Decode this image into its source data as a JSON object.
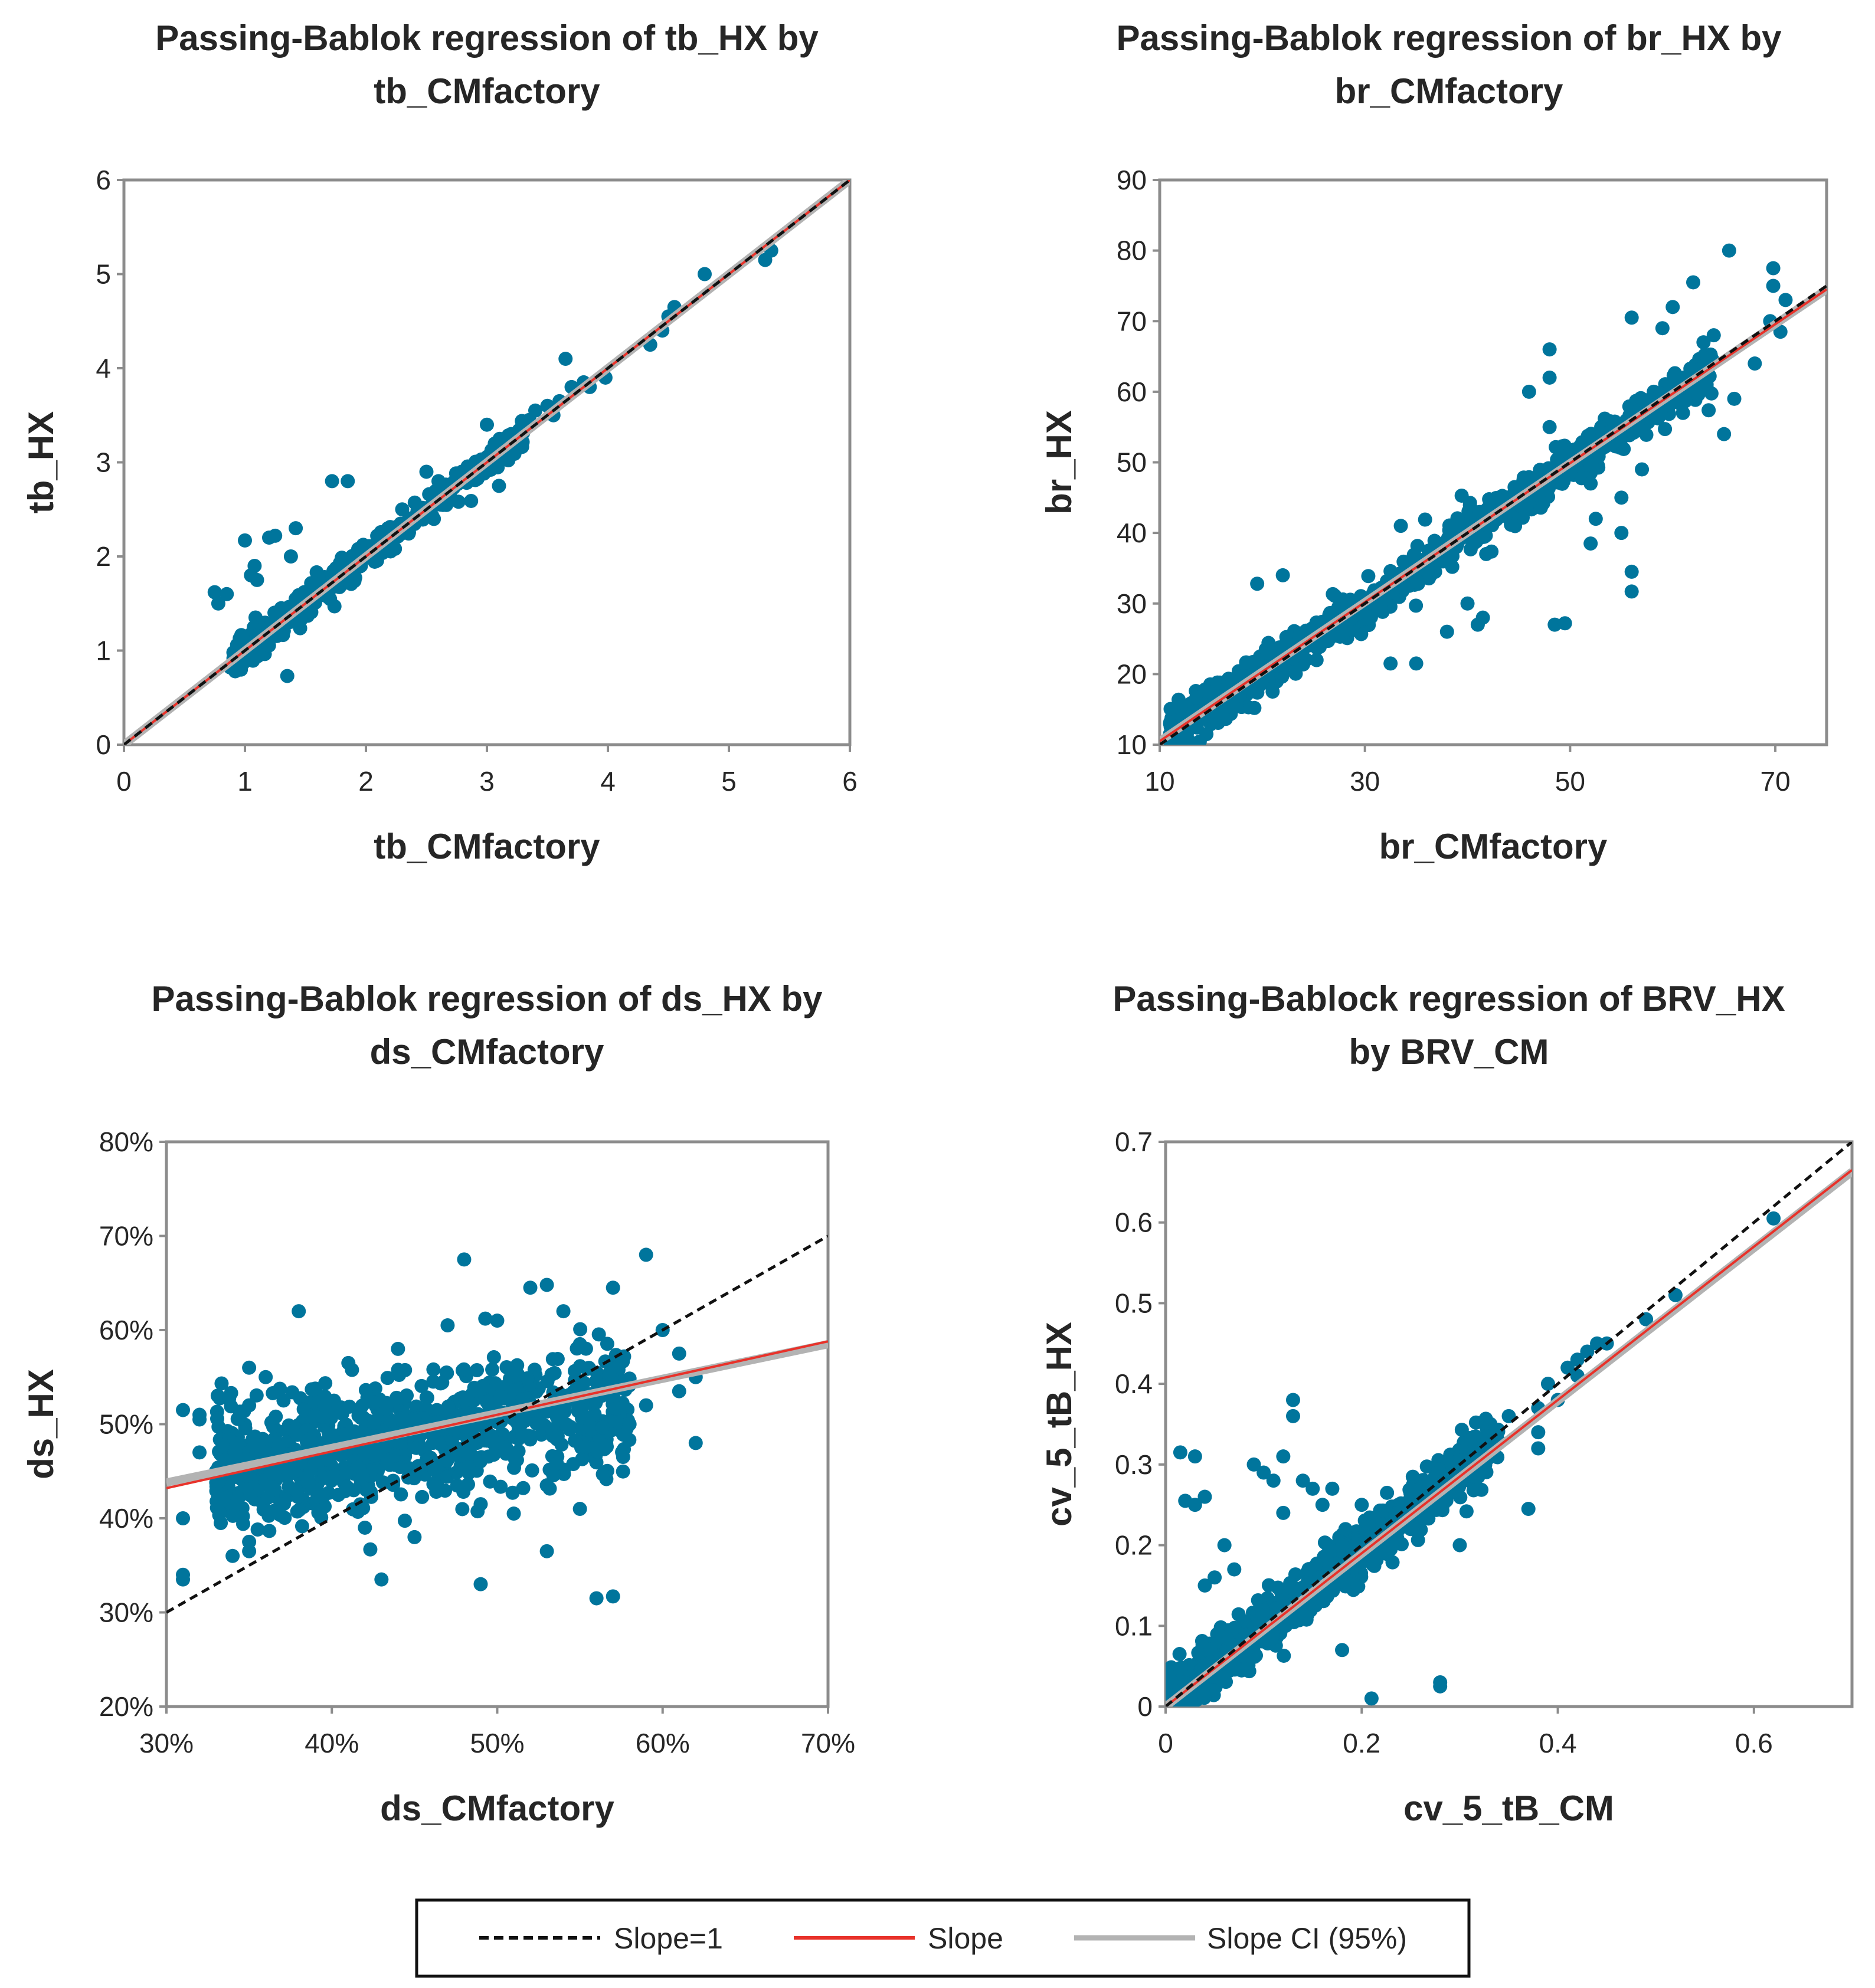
{
  "colors": {
    "points": "#00759c",
    "slope": "#e8322a",
    "slope_ci": "#b3b3b3",
    "identity": "#111111",
    "frame": "#8c8c8c"
  },
  "legend": {
    "identity_label": "Slope=1",
    "slope_label": "Slope",
    "ci_label": "Slope CI (95%)"
  },
  "chart_data": [
    {
      "type": "scatter",
      "title_lines": [
        "Passing-Bablok regression of tb_HX by",
        "tb_CMfactory"
      ],
      "xlabel": "tb_CMfactory",
      "ylabel": "tb_HX",
      "xlim": [
        0,
        6
      ],
      "ylim": [
        0,
        6
      ],
      "xticks": [
        0,
        1,
        2,
        3,
        4,
        5,
        6
      ],
      "yticks": [
        0,
        1,
        2,
        3,
        4,
        5,
        6
      ],
      "xtick_labels": [
        "0",
        "1",
        "2",
        "3",
        "4",
        "5",
        "6"
      ],
      "ytick_labels": [
        "0",
        "1",
        "2",
        "3",
        "4",
        "5",
        "6"
      ],
      "grid": false,
      "slope_line": {
        "x": [
          0,
          6
        ],
        "y": [
          0,
          6
        ]
      },
      "ci_line": {
        "x": [
          0,
          6
        ],
        "y": [
          0,
          6
        ]
      },
      "identity_line": {
        "x": [
          0,
          6
        ],
        "y": [
          0,
          6
        ]
      },
      "trend": {
        "x_min": 0.9,
        "x_max": 3.3,
        "slope": 1.0,
        "intercept": 0.0,
        "sd": 0.08,
        "n": 360
      },
      "points": [
        [
          0.75,
          1.62
        ],
        [
          0.78,
          1.5
        ],
        [
          0.85,
          1.6
        ],
        [
          0.88,
          0.82
        ],
        [
          0.92,
          0.78
        ],
        [
          0.98,
          1.0
        ],
        [
          1.0,
          2.17
        ],
        [
          1.05,
          1.8
        ],
        [
          1.08,
          1.9
        ],
        [
          1.1,
          1.75
        ],
        [
          1.2,
          2.2
        ],
        [
          1.25,
          2.22
        ],
        [
          1.38,
          2.0
        ],
        [
          1.42,
          2.3
        ],
        [
          1.35,
          0.73
        ],
        [
          1.72,
          2.8
        ],
        [
          1.85,
          2.8
        ],
        [
          1.3,
          1.45
        ],
        [
          1.5,
          1.6
        ],
        [
          1.6,
          1.7
        ],
        [
          3.0,
          3.4
        ],
        [
          3.2,
          3.3
        ],
        [
          3.35,
          3.45
        ],
        [
          3.4,
          3.55
        ],
        [
          3.5,
          3.6
        ],
        [
          3.55,
          3.5
        ],
        [
          3.65,
          4.1
        ],
        [
          3.7,
          3.8
        ],
        [
          3.6,
          3.65
        ],
        [
          3.8,
          3.85
        ],
        [
          3.85,
          3.8
        ],
        [
          3.98,
          3.9
        ],
        [
          3.1,
          2.75
        ],
        [
          2.3,
          2.5
        ],
        [
          2.5,
          2.9
        ],
        [
          2.6,
          2.8
        ],
        [
          4.35,
          4.25
        ],
        [
          4.45,
          4.4
        ],
        [
          4.5,
          4.55
        ],
        [
          4.55,
          4.65
        ],
        [
          4.8,
          5.0
        ],
        [
          5.3,
          5.15
        ],
        [
          5.35,
          5.25
        ]
      ]
    },
    {
      "type": "scatter",
      "title_lines": [
        "Passing-Bablok regression of br_HX by",
        "br_CMfactory"
      ],
      "xlabel": "br_CMfactory",
      "ylabel": "br_HX",
      "xlim": [
        10,
        75
      ],
      "ylim": [
        10,
        90
      ],
      "xticks": [
        10,
        30,
        50,
        70
      ],
      "yticks": [
        10,
        20,
        30,
        40,
        50,
        60,
        70,
        80,
        90
      ],
      "xtick_labels": [
        "10",
        "30",
        "50",
        "70"
      ],
      "ytick_labels": [
        "10",
        "20",
        "30",
        "40",
        "50",
        "60",
        "70",
        "80",
        "90"
      ],
      "grid": false,
      "slope_line": {
        "x": [
          10,
          75
        ],
        "y": [
          10.5,
          74.5
        ]
      },
      "ci_line": {
        "x": [
          10,
          75
        ],
        "y": [
          10.5,
          74.5
        ]
      },
      "identity_line": {
        "x": [
          10,
          75
        ],
        "y": [
          10,
          75
        ]
      },
      "trend": {
        "x_min": 11,
        "x_max": 64,
        "slope": 0.985,
        "intercept": 0.5,
        "sd": 1.6,
        "n": 900
      },
      "points": [
        [
          11,
          11.5
        ],
        [
          12,
          12
        ],
        [
          19.5,
          32.8
        ],
        [
          22,
          34
        ],
        [
          32.5,
          21.5
        ],
        [
          35,
          21.5
        ],
        [
          33.5,
          41
        ],
        [
          39,
          41
        ],
        [
          38,
          26
        ],
        [
          40,
          30
        ],
        [
          41,
          27
        ],
        [
          41.5,
          28
        ],
        [
          48.5,
          27
        ],
        [
          49.5,
          27.2
        ],
        [
          48,
          62
        ],
        [
          48,
          66
        ],
        [
          48,
          55
        ],
        [
          46,
          60
        ],
        [
          52.5,
          42
        ],
        [
          52,
          38.5
        ],
        [
          55,
          40
        ],
        [
          55,
          45
        ],
        [
          56,
          70.5
        ],
        [
          56,
          34.5
        ],
        [
          56,
          31.7
        ],
        [
          59,
          69
        ],
        [
          60,
          72
        ],
        [
          62,
          62
        ],
        [
          62,
          75.5
        ],
        [
          64,
          68
        ],
        [
          65,
          54
        ],
        [
          65.5,
          80
        ],
        [
          66,
          59
        ],
        [
          68,
          64
        ],
        [
          69.5,
          70
        ],
        [
          69.8,
          77.5
        ],
        [
          69.8,
          75
        ],
        [
          70.5,
          68.5
        ],
        [
          71,
          73
        ],
        [
          57,
          49
        ],
        [
          61,
          57
        ],
        [
          63,
          67
        ],
        [
          52,
          47
        ],
        [
          45,
          44
        ]
      ]
    },
    {
      "type": "scatter",
      "title_lines": [
        "Passing-Bablok regression of ds_HX by",
        "ds_CMfactory"
      ],
      "xlabel": "ds_CMfactory",
      "ylabel": "ds_HX",
      "xlim": [
        30,
        70
      ],
      "ylim": [
        20,
        80
      ],
      "xticks": [
        30,
        40,
        50,
        60,
        70
      ],
      "yticks": [
        20,
        30,
        40,
        50,
        60,
        70,
        80
      ],
      "xtick_labels": [
        "30%",
        "40%",
        "50%",
        "60%",
        "70%"
      ],
      "ytick_labels": [
        "20%",
        "30%",
        "40%",
        "50%",
        "60%",
        "70%",
        "80%"
      ],
      "grid": false,
      "slope_line": {
        "x": [
          30,
          70
        ],
        "y": [
          43.2,
          58.8
        ]
      },
      "ci_line": {
        "x": [
          30,
          70
        ],
        "y": [
          43.8,
          58.5
        ]
      },
      "identity_line": {
        "x": [
          30,
          70
        ],
        "y": [
          30,
          70
        ]
      },
      "trend": {
        "x_min": 33,
        "x_max": 58,
        "slope": 0.29,
        "intercept": 35.5,
        "sd": 3.3,
        "n": 950
      },
      "points": [
        [
          31,
          51.5
        ],
        [
          31,
          40
        ],
        [
          31,
          34
        ],
        [
          31,
          33.5
        ],
        [
          32,
          51
        ],
        [
          32,
          50.5
        ],
        [
          32,
          47
        ],
        [
          33,
          45
        ],
        [
          34,
          36
        ],
        [
          35,
          37.5
        ],
        [
          35,
          36.5
        ],
        [
          35,
          56
        ],
        [
          38,
          62
        ],
        [
          41,
          56.5
        ],
        [
          43,
          33.5
        ],
        [
          42,
          39
        ],
        [
          45,
          38
        ],
        [
          48,
          67.5
        ],
        [
          49,
          33
        ],
        [
          49,
          41.5
        ],
        [
          51,
          40.5
        ],
        [
          53,
          36.5
        ],
        [
          53,
          43.5
        ],
        [
          55,
          41
        ],
        [
          56,
          31.5
        ],
        [
          57,
          31.7
        ],
        [
          57,
          64.5
        ],
        [
          59,
          68
        ],
        [
          60,
          60
        ],
        [
          61,
          57.5
        ],
        [
          61,
          53.5
        ],
        [
          62,
          55
        ],
        [
          62,
          48
        ],
        [
          54,
          62
        ],
        [
          52,
          64.5
        ],
        [
          53,
          64.8
        ],
        [
          47,
          60.5
        ],
        [
          50,
          61
        ],
        [
          55,
          58.5
        ],
        [
          58,
          50
        ],
        [
          59,
          52
        ],
        [
          36,
          55
        ],
        [
          35,
          52
        ],
        [
          44,
          58
        ]
      ]
    },
    {
      "type": "scatter",
      "title_lines": [
        "Passing-Bablock regression of BRV_HX",
        "by BRV_CM"
      ],
      "xlabel": "cv_5_tB_CM",
      "ylabel": "cv_5_tB_HX",
      "xlim": [
        0,
        0.7
      ],
      "ylim": [
        0,
        0.7
      ],
      "xticks": [
        0,
        0.2,
        0.4,
        0.6
      ],
      "yticks": [
        0,
        0.1,
        0.2,
        0.3,
        0.4,
        0.5,
        0.6,
        0.7
      ],
      "xtick_labels": [
        "0",
        "0.2",
        "0.4",
        "0.6"
      ],
      "ytick_labels": [
        "0",
        "0.1",
        "0.2",
        "0.3",
        "0.4",
        "0.5",
        "0.6",
        "0.7"
      ],
      "grid": false,
      "slope_line": {
        "x": [
          0,
          0.7
        ],
        "y": [
          0.0,
          0.665
        ]
      },
      "ci_line": {
        "x": [
          0,
          0.7
        ],
        "y": [
          0.0,
          0.663
        ]
      },
      "identity_line": {
        "x": [
          0,
          0.7
        ],
        "y": [
          0,
          0.7
        ]
      },
      "trend": {
        "x_min": 0.005,
        "x_max": 0.34,
        "slope": 0.95,
        "intercept": 0.005,
        "sd": 0.018,
        "n": 900
      },
      "points": [
        [
          0.015,
          0.315
        ],
        [
          0.02,
          0.255
        ],
        [
          0.03,
          0.31
        ],
        [
          0.03,
          0.25
        ],
        [
          0.04,
          0.26
        ],
        [
          0.04,
          0.15
        ],
        [
          0.05,
          0.16
        ],
        [
          0.06,
          0.2
        ],
        [
          0.07,
          0.17
        ],
        [
          0.09,
          0.3
        ],
        [
          0.1,
          0.29
        ],
        [
          0.11,
          0.28
        ],
        [
          0.12,
          0.31
        ],
        [
          0.12,
          0.24
        ],
        [
          0.13,
          0.36
        ],
        [
          0.13,
          0.38
        ],
        [
          0.14,
          0.28
        ],
        [
          0.15,
          0.27
        ],
        [
          0.16,
          0.25
        ],
        [
          0.17,
          0.27
        ],
        [
          0.18,
          0.2
        ],
        [
          0.18,
          0.07
        ],
        [
          0.21,
          0.01
        ],
        [
          0.28,
          0.025
        ],
        [
          0.28,
          0.03
        ],
        [
          0.3,
          0.2
        ],
        [
          0.37,
          0.245
        ],
        [
          0.35,
          0.36
        ],
        [
          0.38,
          0.37
        ],
        [
          0.38,
          0.34
        ],
        [
          0.38,
          0.32
        ],
        [
          0.39,
          0.4
        ],
        [
          0.4,
          0.38
        ],
        [
          0.41,
          0.42
        ],
        [
          0.42,
          0.43
        ],
        [
          0.42,
          0.41
        ],
        [
          0.43,
          0.44
        ],
        [
          0.44,
          0.45
        ],
        [
          0.45,
          0.45
        ],
        [
          0.49,
          0.48
        ],
        [
          0.52,
          0.51
        ],
        [
          0.62,
          0.605
        ],
        [
          0.25,
          0.22
        ],
        [
          0.2,
          0.25
        ]
      ]
    }
  ]
}
